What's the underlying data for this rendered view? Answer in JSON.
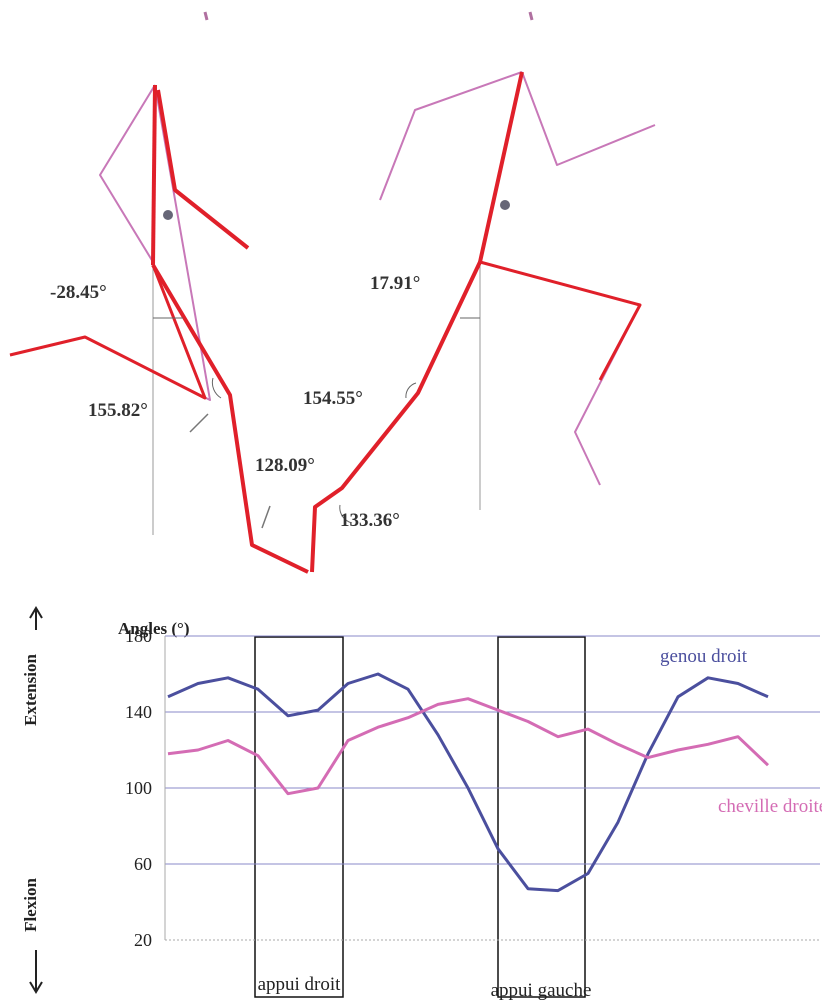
{
  "figure": {
    "angle_labels": [
      "-28.45°",
      "155.82°",
      "128.09°",
      "17.91°",
      "154.55°",
      "133.36°"
    ]
  },
  "chart_data": {
    "type": "line",
    "y_label": "Angles (°)",
    "side_labels": [
      "Extension",
      "Flexion"
    ],
    "annotations": [
      "appui droit",
      "appui gauche"
    ],
    "categories": [
      null,
      null,
      null,
      null,
      null,
      null,
      null,
      null,
      null,
      null,
      null,
      null,
      null,
      null,
      null,
      null,
      null,
      null,
      null,
      null,
      null
    ],
    "series": [
      {
        "name": "genou droit",
        "color": "#4b4f9e",
        "values": [
          148,
          155,
          158,
          152,
          138,
          141,
          155,
          160,
          152,
          128,
          100,
          68,
          47,
          46,
          55,
          82,
          118,
          148,
          158,
          155,
          148
        ]
      },
      {
        "name": "cheville droite",
        "color": "#d46cb4",
        "values": [
          118,
          120,
          125,
          117,
          97,
          100,
          125,
          132,
          137,
          144,
          147,
          141,
          135,
          127,
          131,
          123,
          116,
          120,
          123,
          127,
          112
        ]
      }
    ],
    "ylim": [
      20,
      180
    ],
    "yticks": [
      20,
      60,
      100,
      140,
      180
    ],
    "grid": true
  }
}
